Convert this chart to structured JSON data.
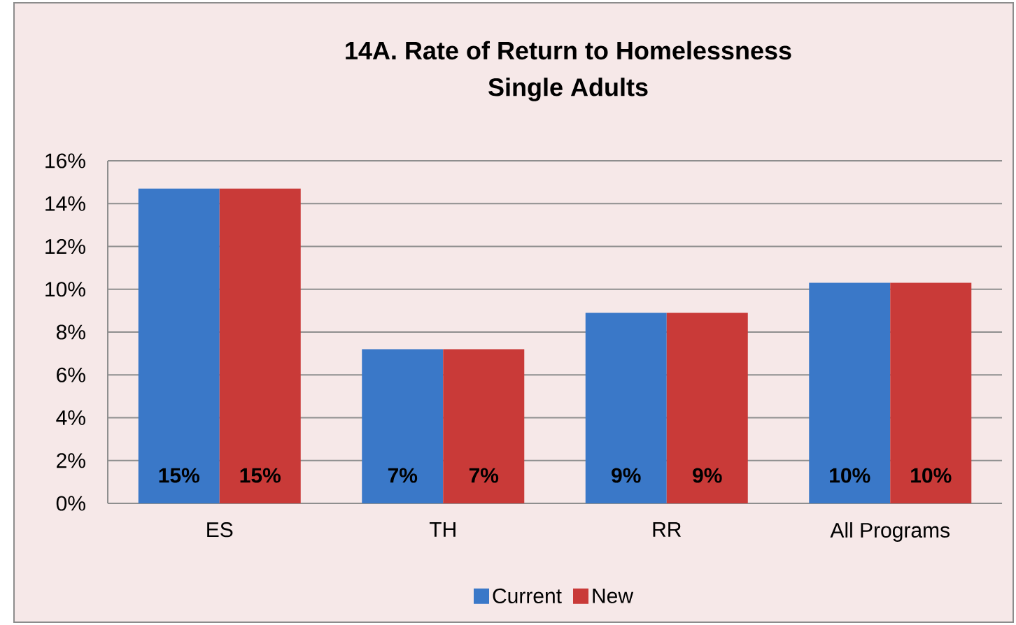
{
  "chart_data": {
    "type": "bar",
    "title": "14A. Rate of Return to Homelessness",
    "subtitle": "Single Adults",
    "categories": [
      "ES",
      "TH",
      "RR",
      "All Programs"
    ],
    "series": [
      {
        "name": "Current",
        "color": "#3a78c8",
        "values": [
          14.7,
          7.2,
          8.9,
          10.3
        ],
        "value_labels": [
          "15%",
          "7%",
          "9%",
          "10%"
        ]
      },
      {
        "name": "New",
        "color": "#c93a38",
        "values": [
          14.7,
          7.2,
          8.9,
          10.3
        ],
        "value_labels": [
          "15%",
          "7%",
          "9%",
          "10%"
        ]
      }
    ],
    "ylim": [
      0,
      16
    ],
    "yticks": [
      {
        "value": 0,
        "label": "0%"
      },
      {
        "value": 2,
        "label": "2%"
      },
      {
        "value": 4,
        "label": "4%"
      },
      {
        "value": 6,
        "label": "6%"
      },
      {
        "value": 8,
        "label": "8%"
      },
      {
        "value": 10,
        "label": "10%"
      },
      {
        "value": 12,
        "label": "12%"
      },
      {
        "value": 14,
        "label": "14%"
      },
      {
        "value": 16,
        "label": "16%"
      }
    ],
    "grid": "y",
    "legend": "bottom"
  }
}
